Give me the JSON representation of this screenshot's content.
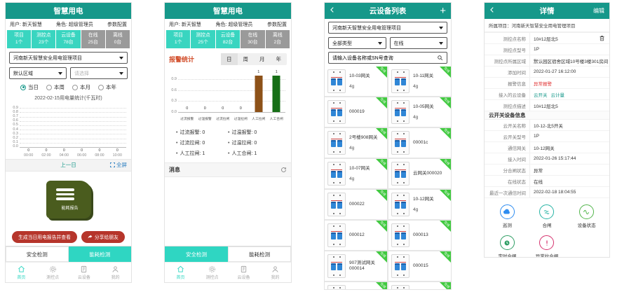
{
  "colors": {
    "header_teal": "#16988a",
    "accent_teal": "#2fd6c2",
    "stat_gray": "#9a9a9a",
    "button_red": "#b6352b",
    "bar_brown": "#8d5118",
    "bar_green": "#176f17",
    "alarm_orange": "#d14a26",
    "alarm_red": "#e03333",
    "badge_green": "#41c940"
  },
  "home_energy": {
    "title": "智慧用电",
    "user": "用户: 新天智慧",
    "role": "角色: 超级管理员",
    "config": "参数配置",
    "stats": [
      {
        "label": "项目",
        "value": "1个",
        "style": "teal"
      },
      {
        "label": "测控点",
        "value": "23个",
        "style": "teal"
      },
      {
        "label": "云设备",
        "value": "78台",
        "style": "teal"
      },
      {
        "label": "在线",
        "value": "25台",
        "style": "gray"
      },
      {
        "label": "离线",
        "value": "0台",
        "style": "gray"
      }
    ],
    "project": "河南新天智慧安全用电管理项目",
    "region": "默认区域",
    "pick_placeholder": "请选择",
    "periods": [
      {
        "label": "当日",
        "checked": true
      },
      {
        "label": "本周",
        "checked": false
      },
      {
        "label": "本月",
        "checked": false
      },
      {
        "label": "本年",
        "checked": false
      }
    ],
    "chart_title": "2022-02-15用电量统计(千瓦时)",
    "prev_day": "上一日",
    "fullscreen": "全屏",
    "book_label": "能耗报告",
    "report_button": "生成当日用电报告并查看",
    "share_button": "分享给朋友",
    "tabs": [
      {
        "label": "安全检测",
        "active": false
      },
      {
        "label": "能耗检测",
        "active": true
      }
    ],
    "nav": [
      {
        "label": "首页",
        "icon": "home",
        "active": true
      },
      {
        "label": "测控点",
        "icon": "gear",
        "active": false
      },
      {
        "label": "云设备",
        "icon": "device",
        "active": false
      },
      {
        "label": "我的",
        "icon": "person",
        "active": false
      }
    ]
  },
  "home_safety": {
    "title": "智慧用电",
    "user": "用户: 新天智慧",
    "role": "角色: 超级管理员",
    "config": "参数配置",
    "stats": [
      {
        "label": "项目",
        "value": "1个",
        "style": "teal"
      },
      {
        "label": "测控点",
        "value": "25个",
        "style": "teal"
      },
      {
        "label": "云设备",
        "value": "82台",
        "style": "teal"
      },
      {
        "label": "在线",
        "value": "30台",
        "style": "gray"
      },
      {
        "label": "离线",
        "value": "2台",
        "style": "gray"
      }
    ],
    "alarm_title": "报警统计",
    "period_tabs": [
      "日",
      "周",
      "月",
      "年"
    ],
    "legend": [
      {
        "label": "过流报警",
        "value": "0"
      },
      {
        "label": "过温报警",
        "value": "0"
      },
      {
        "label": "过流拉闸",
        "value": "0"
      },
      {
        "label": "过温拉闸",
        "value": "0"
      },
      {
        "label": "人工拉闸",
        "value": "1"
      },
      {
        "label": "人工合闸",
        "value": "1"
      }
    ],
    "messages_title": "消息",
    "tabs": [
      {
        "label": "安全检测",
        "active": true
      },
      {
        "label": "能耗检测",
        "active": false
      }
    ],
    "nav": [
      {
        "label": "首页",
        "icon": "home",
        "active": true
      },
      {
        "label": "测控点",
        "icon": "gear",
        "active": false
      },
      {
        "label": "云设备",
        "icon": "device",
        "active": false
      },
      {
        "label": "我的",
        "icon": "person",
        "active": false
      }
    ]
  },
  "device_list": {
    "title": "云设备列表",
    "add_label": "+",
    "project": "河南新天智慧安全用电管理项目",
    "type_filter": "全部类型",
    "status_filter": "在线",
    "search_placeholder": "请输入设备名称或SN号查询",
    "online_badge": "在线",
    "devices": [
      {
        "name": "10-03网关",
        "sub": "4g"
      },
      {
        "name": "10-11网关",
        "sub": "4g"
      },
      {
        "name": "000019",
        "sub": ""
      },
      {
        "name": "10-05网关",
        "sub": "4g"
      },
      {
        "name": "2号楼908网关",
        "sub": "4g"
      },
      {
        "name": "00001c",
        "sub": ""
      },
      {
        "name": "10-07网关",
        "sub": "4g"
      },
      {
        "name": "云网关000020",
        "sub": ""
      },
      {
        "name": "000022",
        "sub": ""
      },
      {
        "name": "10-12网关",
        "sub": "4g"
      },
      {
        "name": "000012",
        "sub": ""
      },
      {
        "name": "000013",
        "sub": ""
      },
      {
        "name": "907测试网关000014",
        "sub": ""
      },
      {
        "name": "000015",
        "sub": ""
      }
    ]
  },
  "detail": {
    "title": "详情",
    "edit_label": "编辑",
    "project_line": "所属项目：河南新天智慧安全用电管理项目",
    "point_rows": [
      {
        "label": "测控点名称",
        "value": "10#12层北5",
        "trash": true
      },
      {
        "label": "测控点型号",
        "value": "1P"
      },
      {
        "label": "测控点所属区域",
        "value": "默认园区宿舍区域10号楼3楼301房间"
      },
      {
        "label": "添加时间",
        "value": "2022-01-27 16:12:00"
      },
      {
        "label": "报警信息",
        "value": "异常报警",
        "style": "alarm"
      },
      {
        "label": "接入的云设备",
        "links": [
          "云开关",
          "云计量"
        ]
      },
      {
        "label": "测控点描述",
        "value": "10#12层北5"
      }
    ],
    "section_title": "云开关设备信息",
    "switch_rows": [
      {
        "label": "云开关名称",
        "value": "10-12-北5开关"
      },
      {
        "label": "云开关型号",
        "value": "1P"
      },
      {
        "label": "通信网关",
        "value": "10-12网关"
      },
      {
        "label": "接入时间",
        "value": "2022-01-26 15:17:44"
      },
      {
        "label": "分合闸状态",
        "value": "异常"
      },
      {
        "label": "在线状态",
        "value": "在线"
      },
      {
        "label": "最近一次通信时间",
        "value": "2022-02-18 18:04:55"
      }
    ],
    "actions": [
      {
        "label": "巡测",
        "icon": "patrol",
        "color": "#2d8cf0"
      },
      {
        "label": "合闸",
        "icon": "close",
        "color": "#26b3a4"
      },
      {
        "label": "设备状态",
        "icon": "status",
        "color": "#52b54b"
      },
      {
        "label": "定时合闸",
        "icon": "timer",
        "color": "#2f9e64"
      },
      {
        "label": "异常拉合闸",
        "icon": "alert",
        "color": "#d5326e"
      }
    ]
  },
  "chart_data": [
    {
      "type": "line",
      "title": "2022-02-15用电量统计(千瓦时)",
      "x": [
        "00:00",
        "02:00",
        "04:00",
        "06:00",
        "08:00",
        "10:00"
      ],
      "series": [
        {
          "name": "用电量",
          "values": [
            0,
            0,
            0,
            0,
            0,
            0
          ]
        }
      ],
      "yticks": [
        "0.9",
        "0.8",
        "0.7",
        "0.6",
        "0.5",
        "0.4",
        "0.3",
        "0.2",
        "0.1",
        "0.0"
      ],
      "ylim": [
        0,
        0.9
      ],
      "grid": true
    },
    {
      "type": "bar",
      "title": "报警统计",
      "categories": [
        "过流报警",
        "过温报警",
        "过流拉闸",
        "过温拉闸",
        "人工拉闸",
        "人工合闸"
      ],
      "values": [
        0,
        0,
        0,
        0,
        1,
        1
      ],
      "colors": [
        "#8d5118",
        "#8d5118",
        "#8d5118",
        "#8d5118",
        "#8d5118",
        "#176f17"
      ],
      "yticks": [
        0.9,
        0.6,
        0.3,
        0
      ],
      "ylim": [
        0,
        1
      ],
      "grid": true
    }
  ]
}
